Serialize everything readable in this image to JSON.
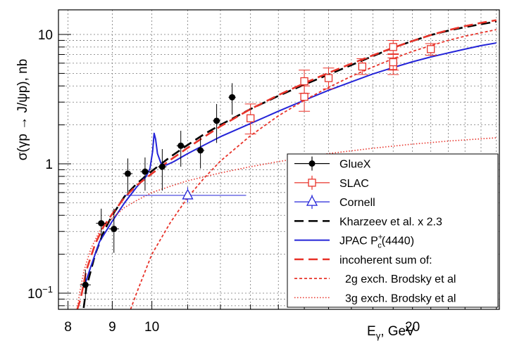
{
  "chart_data": {
    "type": "scatter",
    "title": "",
    "xlabel": "E",
    "xlabel_sub": "γ",
    "xlabel_unit": ", GeV",
    "ylabel": "σ(γp → J/ψp), nb",
    "xscale": "log",
    "yscale": "log",
    "xlim": [
      7.8,
      25.2
    ],
    "ylim": [
      0.075,
      15.5
    ],
    "grid": true,
    "legend_position": "bottom-right",
    "x_ticks": [
      {
        "value": 8,
        "label": "8"
      },
      {
        "value": 9,
        "label": "9"
      },
      {
        "value": 10,
        "label": "10"
      },
      {
        "value": 20,
        "label": "20"
      }
    ],
    "y_ticks": [
      {
        "value": 0.1,
        "mantissa": "10",
        "exponent": "−1"
      },
      {
        "value": 1,
        "mantissa": "1",
        "exponent": ""
      },
      {
        "value": 10,
        "mantissa": "10",
        "exponent": ""
      }
    ],
    "series": [
      {
        "name": "GlueX",
        "kind": "points",
        "color": "#000000",
        "marker": "filled-circle",
        "points": [
          {
            "x": 8.38,
            "y": 0.116,
            "xerr": 0.12,
            "ylo": 0.089,
            "yhi": 0.152
          },
          {
            "x": 8.74,
            "y": 0.347,
            "xerr": 0.12,
            "ylo": 0.26,
            "yhi": 0.45
          },
          {
            "x": 9.04,
            "y": 0.314,
            "xerr": 0.12,
            "ylo": 0.205,
            "yhi": 0.45
          },
          {
            "x": 9.38,
            "y": 0.84,
            "xerr": 0.12,
            "ylo": 0.59,
            "yhi": 1.1
          },
          {
            "x": 9.82,
            "y": 0.87,
            "xerr": 0.12,
            "ylo": 0.62,
            "yhi": 1.12
          },
          {
            "x": 10.28,
            "y": 0.95,
            "xerr": 0.12,
            "ylo": 0.62,
            "yhi": 1.3
          },
          {
            "x": 10.8,
            "y": 1.38,
            "xerr": 0.12,
            "ylo": 0.95,
            "yhi": 1.8
          },
          {
            "x": 11.38,
            "y": 1.27,
            "xerr": 0.12,
            "ylo": 0.92,
            "yhi": 1.6
          },
          {
            "x": 11.88,
            "y": 2.15,
            "xerr": 0.12,
            "ylo": 1.45,
            "yhi": 2.9
          },
          {
            "x": 12.38,
            "y": 3.27,
            "xerr": 0.12,
            "ylo": 2.4,
            "yhi": 4.2
          }
        ]
      },
      {
        "name": "SLAC",
        "kind": "points",
        "color": "#e8332a",
        "marker": "open-square",
        "points": [
          {
            "x": 13.0,
            "y": 2.25,
            "xerr": 0,
            "ylo": 1.7,
            "yhi": 2.9
          },
          {
            "x": 15.0,
            "y": 3.3,
            "xerr": 0,
            "ylo": 2.55,
            "yhi": 4.0
          },
          {
            "x": 15.0,
            "y": 4.35,
            "xerr": 0,
            "ylo": 3.5,
            "yhi": 5.3
          },
          {
            "x": 16.0,
            "y": 4.6,
            "xerr": 0,
            "ylo": 3.8,
            "yhi": 5.5
          },
          {
            "x": 17.5,
            "y": 5.65,
            "xerr": 0,
            "ylo": 4.9,
            "yhi": 6.5
          },
          {
            "x": 19.0,
            "y": 5.7,
            "xerr": 0,
            "ylo": 4.9,
            "yhi": 6.6
          },
          {
            "x": 19.0,
            "y": 6.1,
            "xerr": 0,
            "ylo": 5.3,
            "yhi": 7.1
          },
          {
            "x": 19.0,
            "y": 8.0,
            "xerr": 0,
            "ylo": 7.0,
            "yhi": 9.0
          },
          {
            "x": 21.0,
            "y": 7.7,
            "xerr": 0,
            "ylo": 6.9,
            "yhi": 8.5
          }
        ]
      },
      {
        "name": "Cornell",
        "kind": "points",
        "color": "#2424d8",
        "marker": "open-triangle",
        "points": [
          {
            "x": 11.0,
            "y": 0.57,
            "xerr_lo": 1.7,
            "xerr_hi": 1.85,
            "ylo": 0.5,
            "yhi": 0.66
          }
        ]
      },
      {
        "name": "Kharzeev et al. x 2.3",
        "kind": "curve",
        "color": "#000000",
        "dash": "long",
        "points": [
          [
            8.3,
            0.06
          ],
          [
            8.4,
            0.11
          ],
          [
            8.6,
            0.2
          ],
          [
            8.8,
            0.3
          ],
          [
            9.0,
            0.4
          ],
          [
            9.3,
            0.56
          ],
          [
            9.6,
            0.7
          ],
          [
            10.0,
            0.88
          ],
          [
            10.5,
            1.13
          ],
          [
            11.0,
            1.4
          ],
          [
            11.5,
            1.7
          ],
          [
            12.0,
            2.0
          ],
          [
            13.0,
            2.65
          ],
          [
            14.0,
            3.35
          ],
          [
            15.0,
            4.1
          ],
          [
            16.0,
            4.9
          ],
          [
            17.0,
            5.8
          ],
          [
            18.0,
            6.8
          ],
          [
            19.0,
            7.9
          ],
          [
            20.0,
            8.9
          ],
          [
            21.0,
            9.9
          ],
          [
            22.0,
            10.7
          ],
          [
            23.0,
            11.4
          ],
          [
            24.0,
            12.0
          ],
          [
            25.0,
            12.6
          ]
        ]
      },
      {
        "name": "JPAC P",
        "name_sup": "+",
        "name_sub": "c",
        "name_suffix": "(4440)",
        "kind": "curve",
        "color": "#2424d8",
        "dash": "solid",
        "points": [
          [
            8.38,
            0.12
          ],
          [
            8.5,
            0.16
          ],
          [
            8.7,
            0.25
          ],
          [
            9.0,
            0.36
          ],
          [
            9.3,
            0.5
          ],
          [
            9.6,
            0.66
          ],
          [
            9.85,
            0.8
          ],
          [
            9.95,
            0.92
          ],
          [
            10.02,
            1.25
          ],
          [
            10.06,
            1.72
          ],
          [
            10.1,
            1.55
          ],
          [
            10.15,
            1.2
          ],
          [
            10.25,
            1.0
          ],
          [
            10.4,
            0.98
          ],
          [
            10.6,
            1.04
          ],
          [
            11.0,
            1.2
          ],
          [
            11.5,
            1.4
          ],
          [
            12.0,
            1.62
          ],
          [
            13.0,
            2.05
          ],
          [
            14.0,
            2.55
          ],
          [
            15.0,
            3.1
          ],
          [
            16.0,
            3.7
          ],
          [
            17.0,
            4.3
          ],
          [
            18.0,
            4.95
          ],
          [
            19.0,
            5.55
          ],
          [
            20.0,
            6.15
          ],
          [
            21.0,
            6.7
          ],
          [
            22.0,
            7.2
          ],
          [
            23.0,
            7.7
          ],
          [
            24.0,
            8.2
          ],
          [
            25.0,
            8.6
          ]
        ]
      },
      {
        "name": "incoherent sum of:",
        "kind": "curve",
        "color": "#e8332a",
        "dash": "long",
        "points": [
          [
            8.2,
            0.075
          ],
          [
            8.25,
            0.085
          ],
          [
            8.3,
            0.1
          ],
          [
            8.4,
            0.15
          ],
          [
            8.6,
            0.24
          ],
          [
            8.8,
            0.33
          ],
          [
            9.0,
            0.41
          ],
          [
            9.3,
            0.55
          ],
          [
            9.6,
            0.68
          ],
          [
            10.0,
            0.84
          ],
          [
            10.5,
            1.07
          ],
          [
            11.0,
            1.33
          ],
          [
            11.5,
            1.62
          ],
          [
            12.0,
            1.95
          ],
          [
            13.0,
            2.65
          ],
          [
            14.0,
            3.4
          ],
          [
            15.0,
            4.2
          ],
          [
            16.0,
            5.05
          ],
          [
            17.0,
            5.95
          ],
          [
            18.0,
            6.9
          ],
          [
            19.0,
            7.9
          ],
          [
            20.0,
            8.9
          ],
          [
            21.0,
            9.9
          ],
          [
            22.0,
            10.8
          ],
          [
            23.0,
            11.6
          ],
          [
            24.0,
            12.3
          ],
          [
            25.0,
            12.9
          ]
        ]
      },
      {
        "name": "2g exch. Brodsky et al",
        "kind": "curve",
        "color": "#e8332a",
        "dash": "short",
        "points": [
          [
            9.45,
            0.075
          ],
          [
            9.6,
            0.1
          ],
          [
            10.0,
            0.2
          ],
          [
            10.5,
            0.35
          ],
          [
            11.0,
            0.55
          ],
          [
            11.5,
            0.78
          ],
          [
            12.0,
            1.05
          ],
          [
            13.0,
            1.65
          ],
          [
            14.0,
            2.35
          ],
          [
            15.0,
            3.1
          ],
          [
            16.0,
            3.9
          ],
          [
            17.0,
            4.75
          ],
          [
            18.0,
            5.6
          ],
          [
            19.0,
            6.5
          ],
          [
            20.0,
            7.4
          ],
          [
            21.0,
            8.2
          ],
          [
            22.0,
            9.0
          ],
          [
            23.0,
            9.7
          ],
          [
            24.0,
            10.3
          ],
          [
            25.0,
            10.9
          ]
        ]
      },
      {
        "name": "3g exch. Brodsky et al",
        "kind": "curve",
        "color": "#e8332a",
        "dash": "dotted",
        "points": [
          [
            8.2,
            0.075
          ],
          [
            8.25,
            0.1
          ],
          [
            8.35,
            0.15
          ],
          [
            8.5,
            0.22
          ],
          [
            8.7,
            0.3
          ],
          [
            9.0,
            0.38
          ],
          [
            9.3,
            0.46
          ],
          [
            9.6,
            0.52
          ],
          [
            10.0,
            0.6
          ],
          [
            10.5,
            0.67
          ],
          [
            11.0,
            0.74
          ],
          [
            12.0,
            0.85
          ],
          [
            13.0,
            0.95
          ],
          [
            14.0,
            1.04
          ],
          [
            15.0,
            1.12
          ],
          [
            16.0,
            1.2
          ],
          [
            17.0,
            1.26
          ],
          [
            18.0,
            1.32
          ],
          [
            19.0,
            1.37
          ],
          [
            20.0,
            1.42
          ],
          [
            21.0,
            1.46
          ],
          [
            22.0,
            1.5
          ],
          [
            23.0,
            1.53
          ],
          [
            24.0,
            1.56
          ],
          [
            25.0,
            1.59
          ]
        ]
      }
    ]
  }
}
